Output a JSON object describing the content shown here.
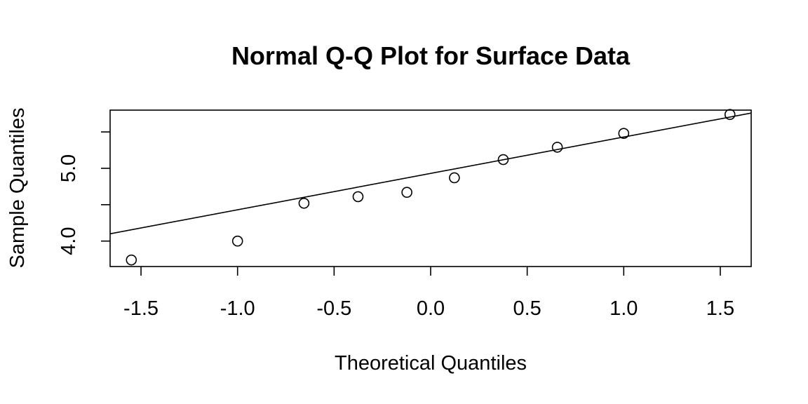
{
  "chart_data": {
    "type": "scatter",
    "title": "Normal Q-Q Plot for Surface Data",
    "xlabel": "Theoretical Quantiles",
    "ylabel": "Sample Quantiles",
    "xlim": [
      -1.66,
      1.66
    ],
    "ylim": [
      3.65,
      5.8
    ],
    "x_ticks": [
      -1.5,
      -1.0,
      -0.5,
      0.0,
      0.5,
      1.0,
      1.5
    ],
    "x_tick_labels": [
      "-1.5",
      "-1.0",
      "-0.5",
      "0.0",
      "0.5",
      "1.0",
      "1.5"
    ],
    "y_ticks": [
      4.0,
      4.5,
      5.0,
      5.5
    ],
    "y_tick_labels": [
      "4.0",
      "",
      "5.0",
      ""
    ],
    "series": [
      {
        "x": [
          -1.55,
          -1.0,
          -0.656,
          -0.376,
          -0.123,
          0.123,
          0.376,
          0.656,
          1.0,
          1.55
        ],
        "y": [
          3.74,
          4.0,
          4.52,
          4.61,
          4.67,
          4.87,
          5.12,
          5.29,
          5.48,
          5.74
        ]
      }
    ],
    "reference_line": {
      "intercept": 4.93,
      "slope": 0.5
    },
    "grid": false,
    "legend": "none",
    "colors": {
      "points": "#000000",
      "line": "#000000",
      "background": "#ffffff"
    }
  }
}
